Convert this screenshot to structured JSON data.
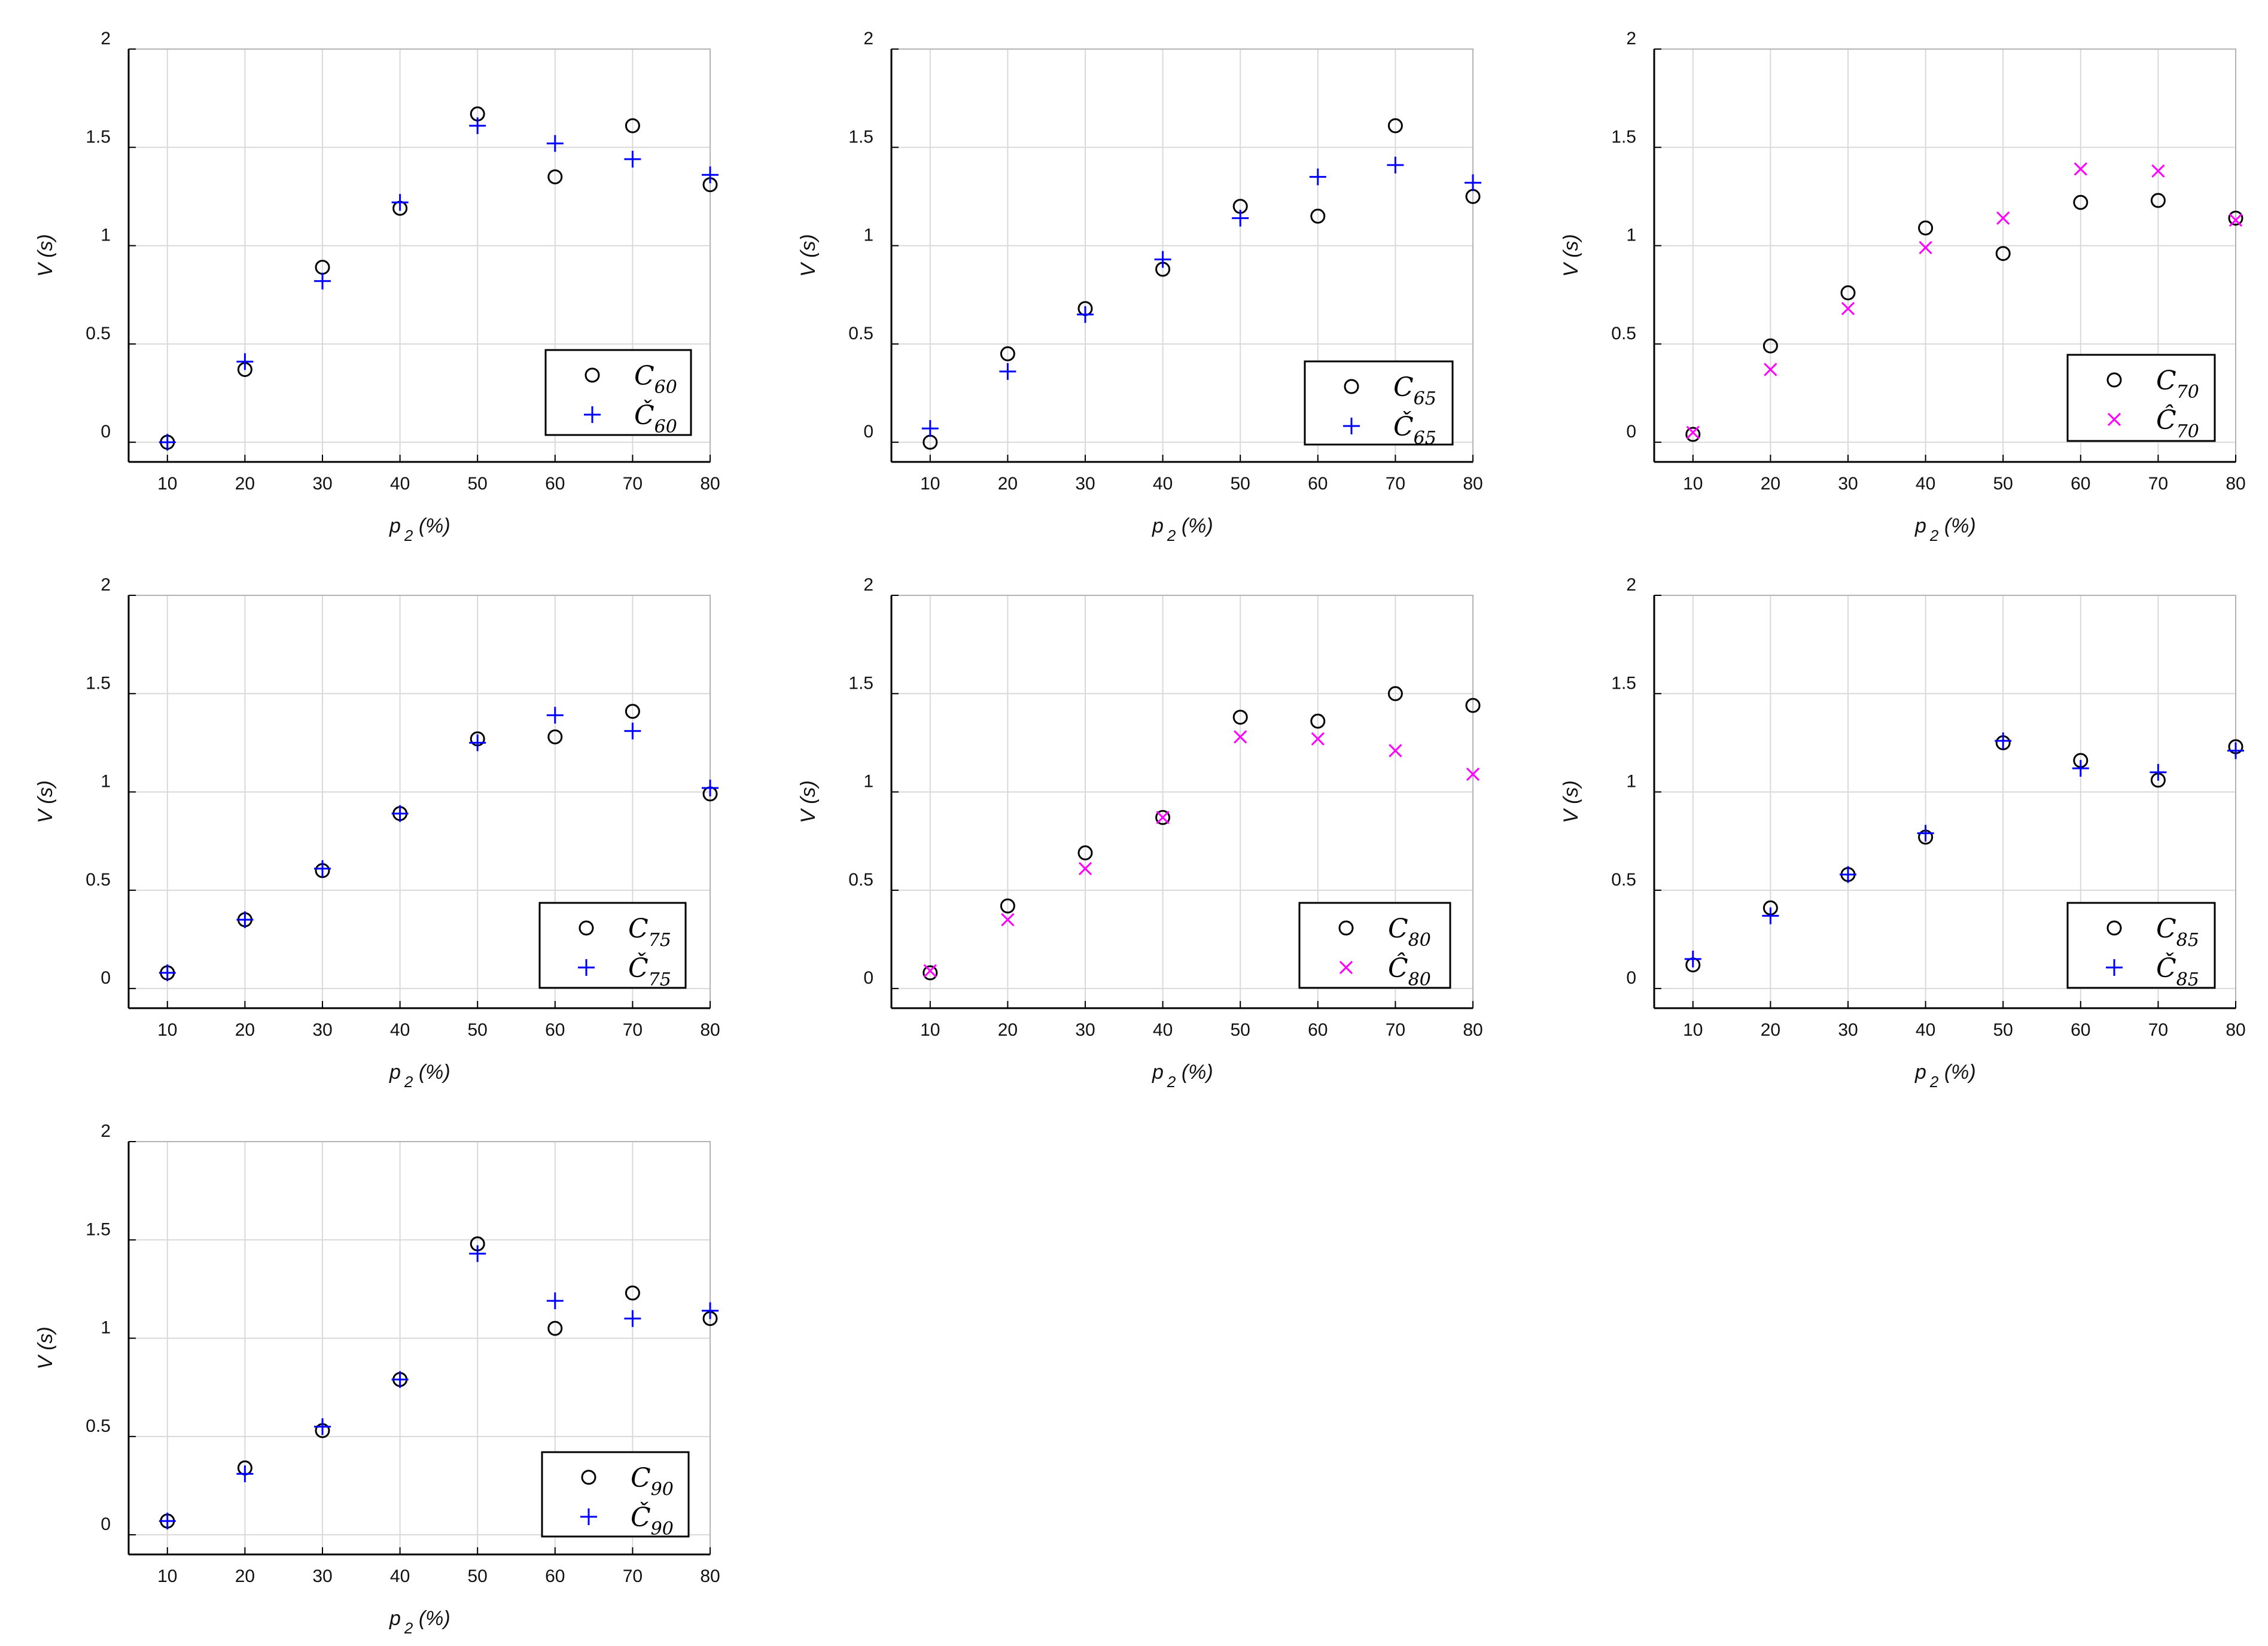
{
  "colors": {
    "circle": "#000000",
    "plus": "#0000ff",
    "cross": "#ff00ff",
    "grid": "#d9d9d9"
  },
  "chart_data": [
    {
      "type": "scatter",
      "xlabel": "p",
      "xlabel_sub": "2",
      "xlabel_suffix": " (%)",
      "ylabel": "V (s)",
      "xlim": [
        5,
        80
      ],
      "ylim": [
        -0.1,
        2
      ],
      "xticks": [
        10,
        20,
        30,
        40,
        50,
        60,
        70,
        80
      ],
      "yticks": [
        0,
        0.5,
        1,
        1.5,
        2
      ],
      "grid": true,
      "legend_position": "lower-right",
      "x": [
        10,
        20,
        30,
        40,
        50,
        60,
        70,
        80
      ],
      "series": [
        {
          "name": "C",
          "sub": "60",
          "marker": "circle",
          "values": [
            0.0,
            0.37,
            0.89,
            1.19,
            1.67,
            1.35,
            1.61,
            1.31
          ]
        },
        {
          "name": "Č",
          "sub": "60",
          "marker": "plus",
          "values": [
            0.0,
            0.41,
            0.82,
            1.22,
            1.61,
            1.52,
            1.44,
            1.36
          ]
        }
      ]
    },
    {
      "type": "scatter",
      "xlabel": "p",
      "xlabel_sub": "2",
      "xlabel_suffix": " (%)",
      "ylabel": "V (s)",
      "xlim": [
        5,
        80
      ],
      "ylim": [
        -0.1,
        2
      ],
      "xticks": [
        10,
        20,
        30,
        40,
        50,
        60,
        70,
        80
      ],
      "yticks": [
        0,
        0.5,
        1,
        1.5,
        2
      ],
      "grid": true,
      "legend_position": "lower-right",
      "x": [
        10,
        20,
        30,
        40,
        50,
        60,
        70,
        80
      ],
      "series": [
        {
          "name": "C",
          "sub": "65",
          "marker": "circle",
          "values": [
            0.0,
            0.45,
            0.68,
            0.88,
            1.2,
            1.15,
            1.61,
            1.25
          ]
        },
        {
          "name": "Č",
          "sub": "65",
          "marker": "plus",
          "values": [
            0.07,
            0.36,
            0.65,
            0.93,
            1.14,
            1.35,
            1.41,
            1.32
          ]
        }
      ]
    },
    {
      "type": "scatter",
      "xlabel": "p",
      "xlabel_sub": "2",
      "xlabel_suffix": " (%)",
      "ylabel": "V (s)",
      "xlim": [
        5,
        80
      ],
      "ylim": [
        -0.1,
        2
      ],
      "xticks": [
        10,
        20,
        30,
        40,
        50,
        60,
        70,
        80
      ],
      "yticks": [
        0,
        0.5,
        1,
        1.5,
        2
      ],
      "grid": true,
      "legend_position": "lower-right",
      "x": [
        10,
        20,
        30,
        40,
        50,
        60,
        70,
        80
      ],
      "series": [
        {
          "name": "C",
          "sub": "70",
          "marker": "circle",
          "values": [
            0.04,
            0.49,
            0.76,
            1.09,
            0.96,
            1.22,
            1.23,
            1.14
          ]
        },
        {
          "name": "Ĉ",
          "sub": "70",
          "marker": "cross",
          "values": [
            0.05,
            0.37,
            0.68,
            0.99,
            1.14,
            1.39,
            1.38,
            1.13
          ]
        }
      ]
    },
    {
      "type": "scatter",
      "xlabel": "p",
      "xlabel_sub": "2",
      "xlabel_suffix": " (%)",
      "ylabel": "V (s)",
      "xlim": [
        5,
        80
      ],
      "ylim": [
        -0.1,
        2
      ],
      "xticks": [
        10,
        20,
        30,
        40,
        50,
        60,
        70,
        80
      ],
      "yticks": [
        0,
        0.5,
        1,
        1.5,
        2
      ],
      "grid": true,
      "legend_position": "lower-right",
      "x": [
        10,
        20,
        30,
        40,
        50,
        60,
        70,
        80
      ],
      "series": [
        {
          "name": "C",
          "sub": "75",
          "marker": "circle",
          "values": [
            0.08,
            0.35,
            0.6,
            0.89,
            1.27,
            1.28,
            1.41,
            0.99
          ]
        },
        {
          "name": "Č",
          "sub": "75",
          "marker": "plus",
          "values": [
            0.08,
            0.35,
            0.61,
            0.89,
            1.25,
            1.39,
            1.31,
            1.02
          ]
        }
      ]
    },
    {
      "type": "scatter",
      "xlabel": "p",
      "xlabel_sub": "2",
      "xlabel_suffix": " (%)",
      "ylabel": "V (s)",
      "xlim": [
        5,
        80
      ],
      "ylim": [
        -0.1,
        2
      ],
      "xticks": [
        10,
        20,
        30,
        40,
        50,
        60,
        70,
        80
      ],
      "yticks": [
        0,
        0.5,
        1,
        1.5,
        2
      ],
      "grid": true,
      "legend_position": "lower-right",
      "x": [
        10,
        20,
        30,
        40,
        50,
        60,
        70,
        80
      ],
      "series": [
        {
          "name": "C",
          "sub": "80",
          "marker": "circle",
          "values": [
            0.08,
            0.42,
            0.69,
            0.87,
            1.38,
            1.36,
            1.5,
            1.44
          ]
        },
        {
          "name": "Ĉ",
          "sub": "80",
          "marker": "cross",
          "values": [
            0.09,
            0.35,
            0.61,
            0.87,
            1.28,
            1.27,
            1.21,
            1.09
          ]
        }
      ]
    },
    {
      "type": "scatter",
      "xlabel": "p",
      "xlabel_sub": "2",
      "xlabel_suffix": " (%)",
      "ylabel": "V (s)",
      "xlim": [
        5,
        80
      ],
      "ylim": [
        -0.1,
        2
      ],
      "xticks": [
        10,
        20,
        30,
        40,
        50,
        60,
        70,
        80
      ],
      "yticks": [
        0,
        0.5,
        1,
        1.5,
        2
      ],
      "grid": true,
      "legend_position": "lower-right",
      "x": [
        10,
        20,
        30,
        40,
        50,
        60,
        70,
        80
      ],
      "series": [
        {
          "name": "C",
          "sub": "85",
          "marker": "circle",
          "values": [
            0.12,
            0.41,
            0.58,
            0.77,
            1.25,
            1.16,
            1.06,
            1.23
          ]
        },
        {
          "name": "Č",
          "sub": "85",
          "marker": "plus",
          "values": [
            0.15,
            0.37,
            0.58,
            0.79,
            1.26,
            1.12,
            1.1,
            1.21
          ]
        }
      ]
    },
    {
      "type": "scatter",
      "xlabel": "p",
      "xlabel_sub": "2",
      "xlabel_suffix": " (%)",
      "ylabel": "V (s)",
      "xlim": [
        5,
        80
      ],
      "ylim": [
        -0.1,
        2
      ],
      "xticks": [
        10,
        20,
        30,
        40,
        50,
        60,
        70,
        80
      ],
      "yticks": [
        0,
        0.5,
        1,
        1.5,
        2
      ],
      "grid": true,
      "legend_position": "lower-right",
      "x": [
        10,
        20,
        30,
        40,
        50,
        60,
        70,
        80
      ],
      "series": [
        {
          "name": "C",
          "sub": "90",
          "marker": "circle",
          "values": [
            0.07,
            0.34,
            0.53,
            0.79,
            1.48,
            1.05,
            1.23,
            1.1
          ]
        },
        {
          "name": "Č",
          "sub": "90",
          "marker": "plus",
          "values": [
            0.07,
            0.31,
            0.55,
            0.79,
            1.43,
            1.19,
            1.1,
            1.14
          ]
        }
      ]
    }
  ]
}
